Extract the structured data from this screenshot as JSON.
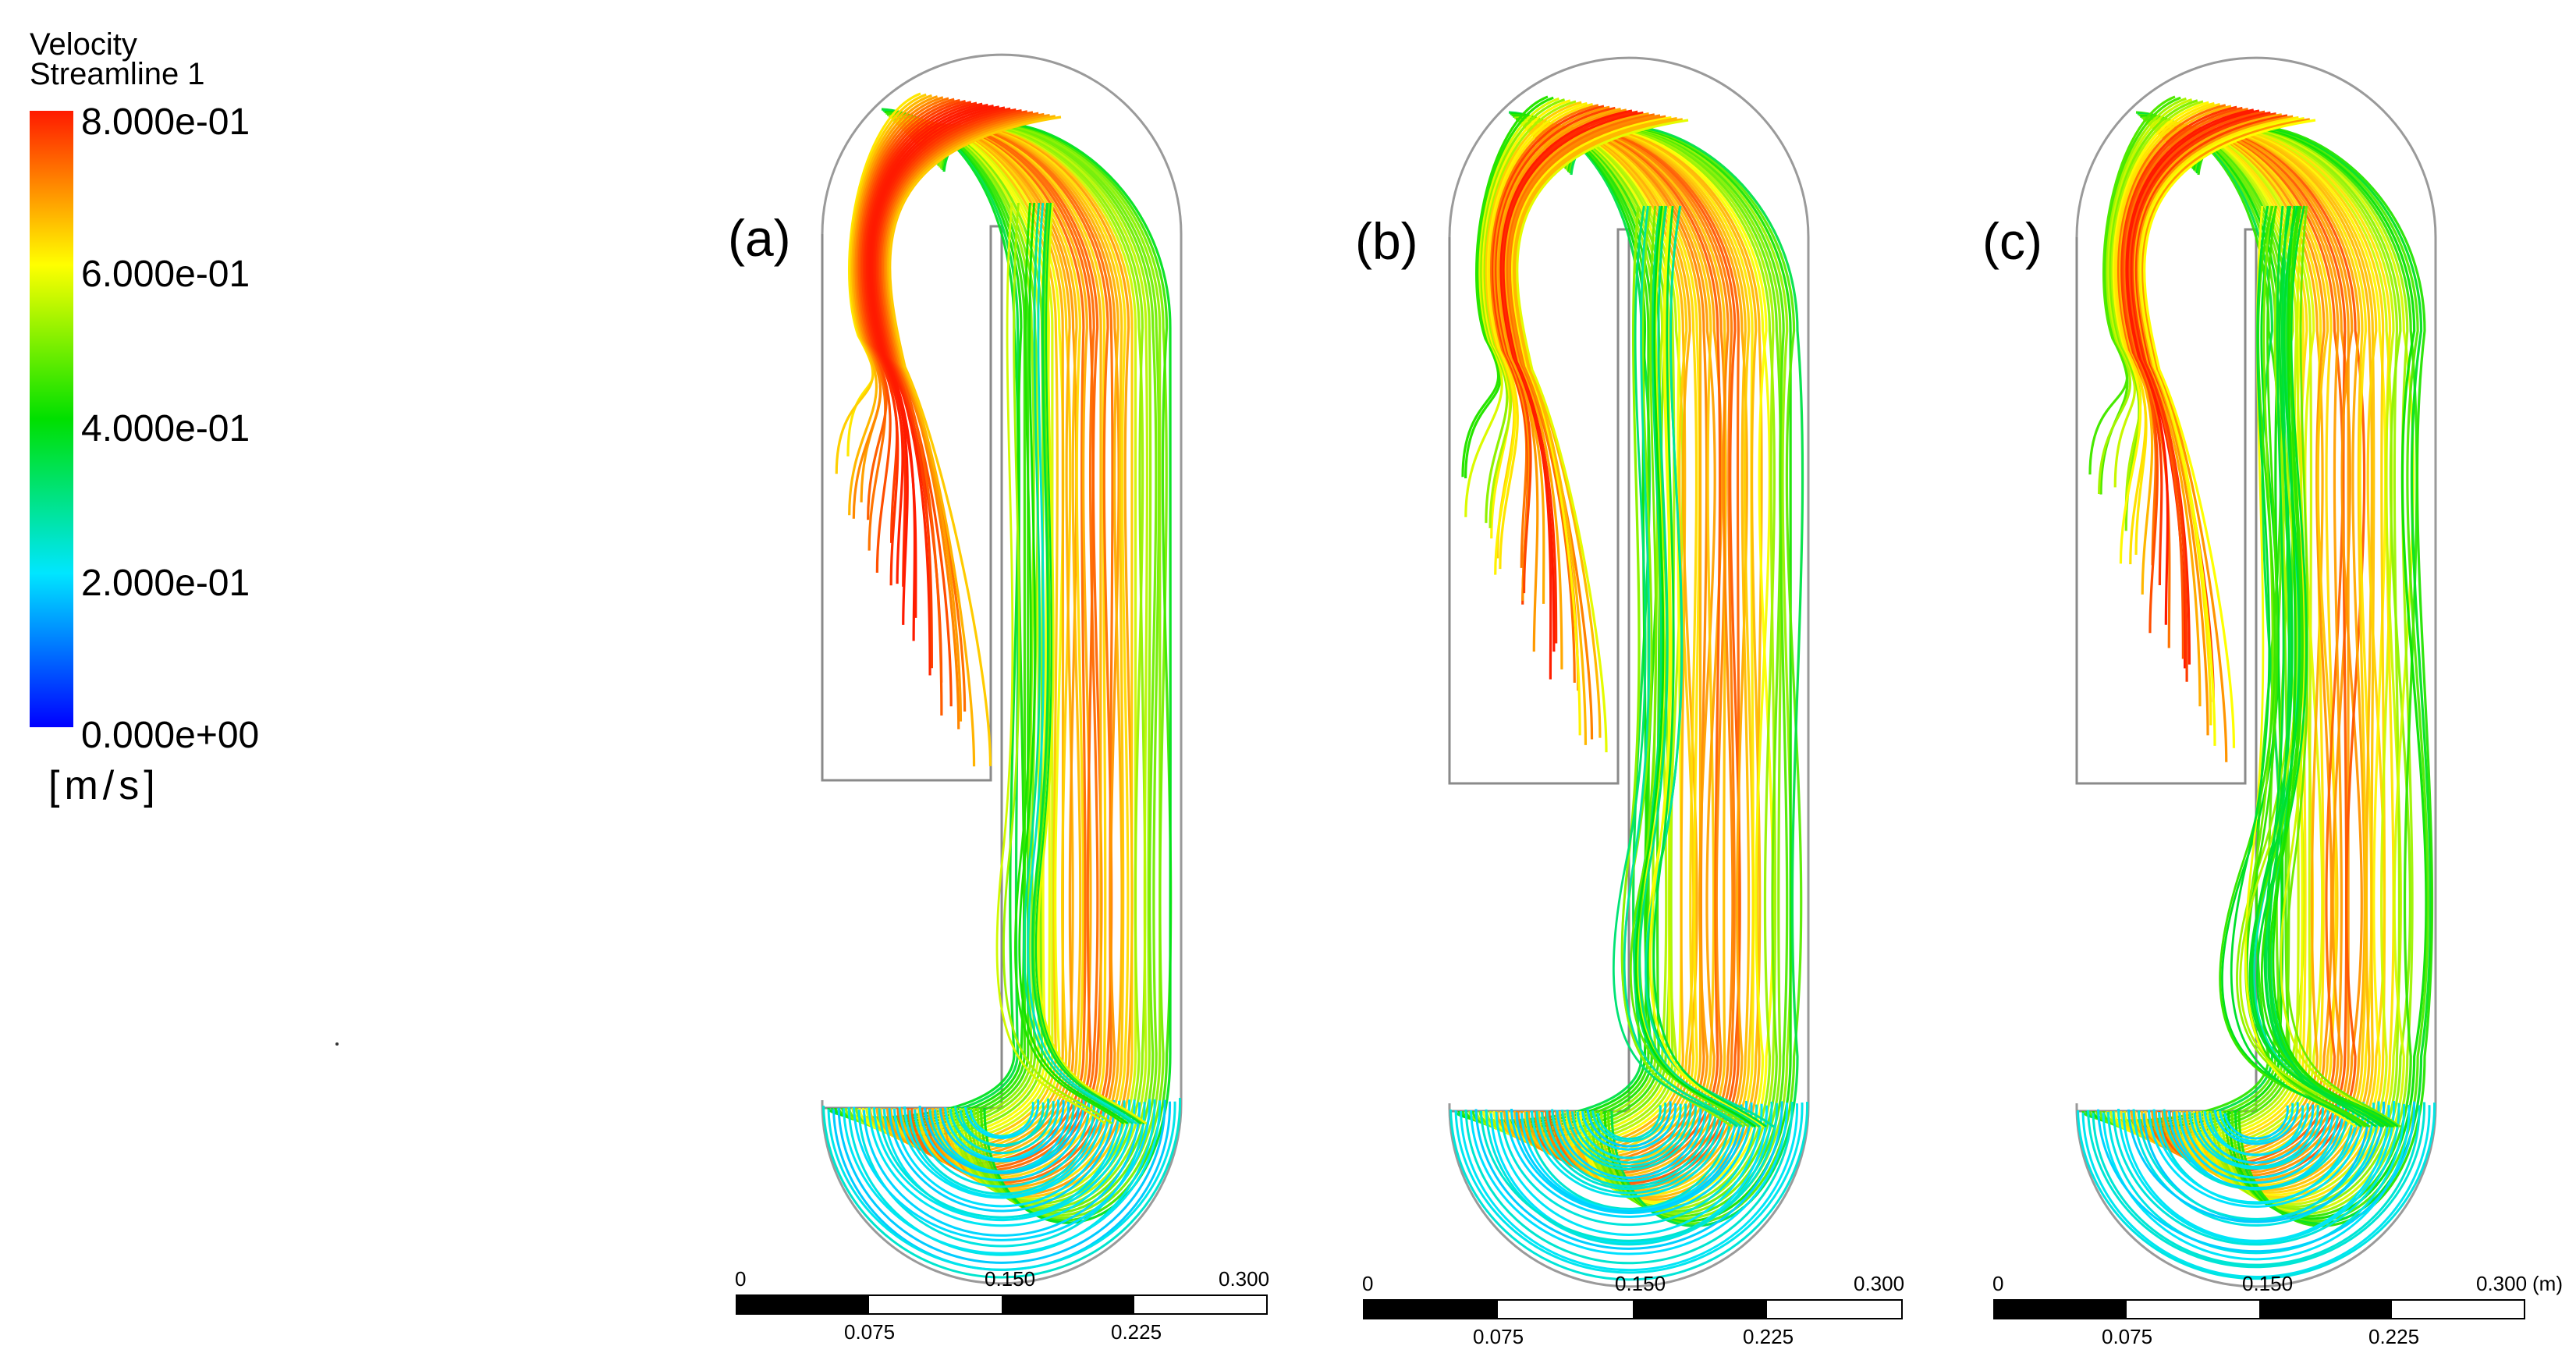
{
  "legend": {
    "title_line1": "Velocity",
    "title_line2": "Streamline 1",
    "ticks": [
      "8.000e-01",
      "6.000e-01",
      "4.000e-01",
      "2.000e-01",
      "0.000e+00"
    ],
    "unit": "[m/s]",
    "colormap": [
      "#0000ff",
      "#00e6ff",
      "#00e000",
      "#ffff00",
      "#ff1a00"
    ],
    "range": [
      0.0,
      0.8
    ]
  },
  "panels": [
    {
      "label": "(a)",
      "key": "a"
    },
    {
      "label": "(b)",
      "key": "b"
    },
    {
      "label": "(c)",
      "key": "c"
    }
  ],
  "scalebar": {
    "top_ticks": [
      "0",
      "0.150",
      "0.300"
    ],
    "bottom_ticks": [
      "0.075",
      "0.225"
    ],
    "unit": "(m)"
  }
}
